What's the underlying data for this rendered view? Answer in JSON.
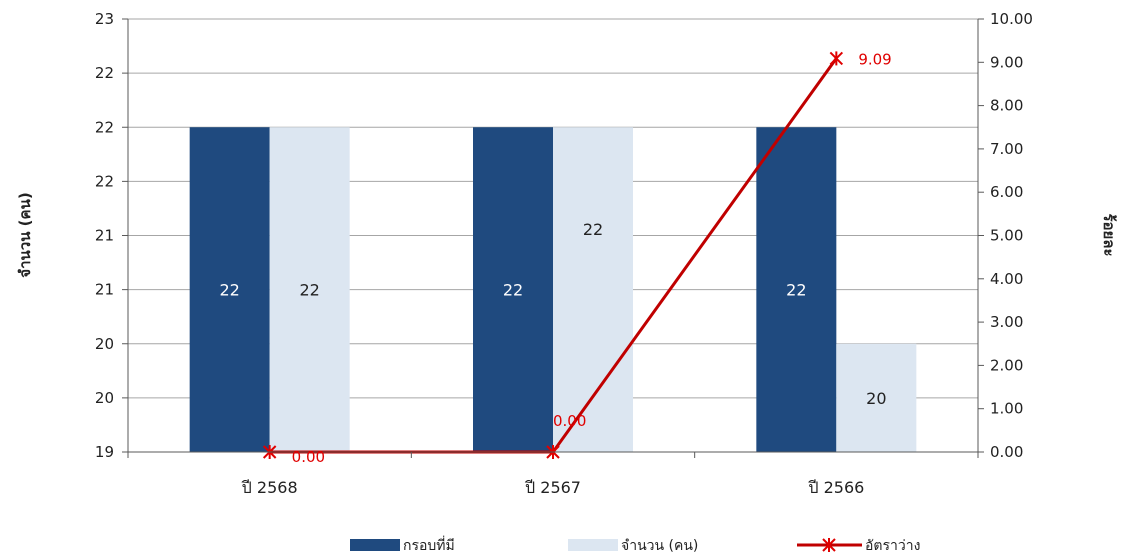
{
  "chart_data": {
    "type": "bar",
    "categories": [
      "ปี 2568",
      "ปี 2567",
      "ปี 2566"
    ],
    "series": [
      {
        "name": "กรอบที่มี",
        "type": "bar",
        "axis": "left",
        "values": [
          22,
          22,
          22
        ],
        "labels": [
          "22",
          "22",
          "22"
        ],
        "color": "#1f4a7f"
      },
      {
        "name": "จำนวน (คน)",
        "type": "bar",
        "axis": "left",
        "values": [
          22,
          22,
          20
        ],
        "labels": [
          "22",
          "22",
          "20"
        ],
        "color": "#dce6f1"
      },
      {
        "name": "อัตราว่าง",
        "type": "line",
        "axis": "right",
        "values": [
          0.0,
          0.0,
          9.09
        ],
        "labels": [
          "0.00",
          "0.00",
          "9.09"
        ],
        "color": "#c00000"
      }
    ],
    "ylabel": "จำนวน (คน)",
    "y2label": "ร้อยละ",
    "left_axis": {
      "min": 19,
      "max": 23,
      "tick_values": [
        19,
        19.5,
        20,
        20.5,
        21,
        21.5,
        22,
        22.5,
        23
      ],
      "tick_labels": [
        "19",
        "20",
        "20",
        "21",
        "21",
        "22",
        "22",
        "22",
        "23"
      ]
    },
    "right_axis": {
      "min": 0,
      "max": 10,
      "tick_values": [
        0,
        1,
        2,
        3,
        4,
        5,
        6,
        7,
        8,
        9,
        10
      ],
      "tick_labels": [
        "0.00",
        "1.00",
        "2.00",
        "3.00",
        "4.00",
        "5.00",
        "6.00",
        "7.00",
        "8.00",
        "9.00",
        "10.00"
      ]
    },
    "grid": true,
    "legend_position": "bottom"
  }
}
